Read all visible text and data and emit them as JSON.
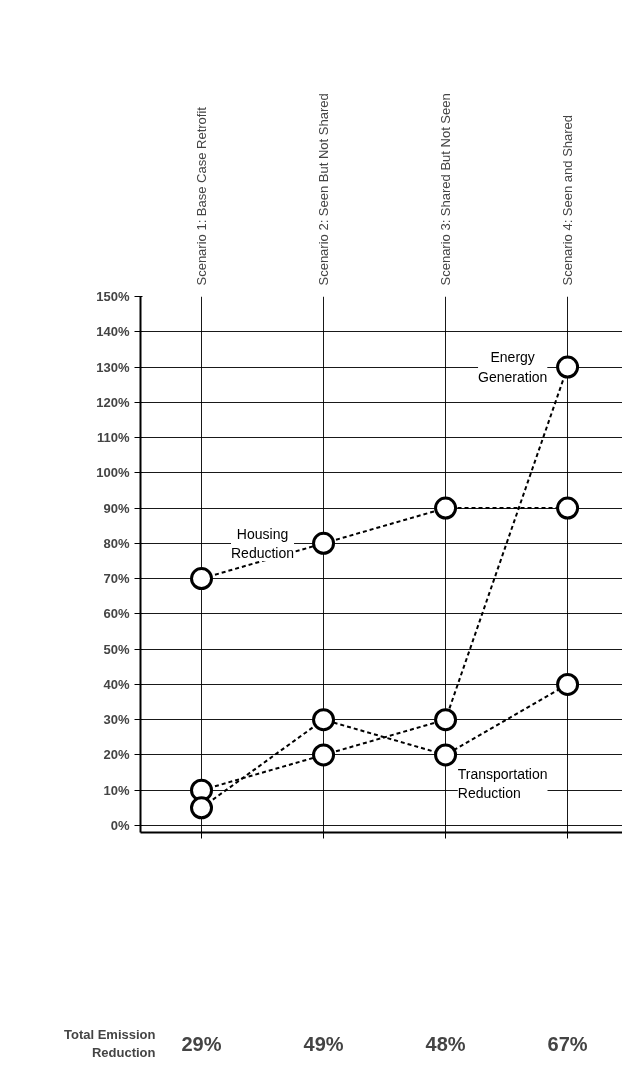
{
  "chart_data": {
    "type": "line",
    "categories": [
      "Scenario 1: Base Case Retrofit",
      "Scenario 2: Seen But Not Shared",
      "Scenario 3: Shared But Not Seen",
      "Scenario 4: Seen and Shared"
    ],
    "series": [
      {
        "name": "Housing Reduction",
        "color": "#000000",
        "values": [
          70,
          80,
          90,
          90
        ]
      },
      {
        "name": "Energy Generation",
        "color": "#000000",
        "values": [
          10,
          20,
          30,
          130
        ]
      },
      {
        "name": "Transportation Reduction",
        "color": "#000000",
        "values": [
          5,
          30,
          20,
          40
        ]
      }
    ],
    "ylim": [
      -2,
      150
    ],
    "yticks": [
      {
        "value": 0,
        "label": "0%"
      },
      {
        "value": 10,
        "label": "10%"
      },
      {
        "value": 20,
        "label": "20%"
      },
      {
        "value": 30,
        "label": "30%"
      },
      {
        "value": 40,
        "label": "40%"
      },
      {
        "value": 50,
        "label": "50%"
      },
      {
        "value": 60,
        "label": "60%"
      },
      {
        "value": 70,
        "label": "70%"
      },
      {
        "value": 80,
        "label": "80%"
      },
      {
        "value": 90,
        "label": "90%"
      },
      {
        "value": 100,
        "label": "100%"
      },
      {
        "value": 110,
        "label": "110%"
      },
      {
        "value": 120,
        "label": "120%"
      },
      {
        "value": 130,
        "label": "130%"
      },
      {
        "value": 140,
        "label": "140%"
      },
      {
        "value": 150,
        "label": "150%"
      }
    ],
    "grid": true,
    "legend": false,
    "marker": "circle",
    "line_style": "dashed",
    "annotations": [
      "Total Emission Reduction",
      "29%",
      "49%",
      "48%",
      "67%"
    ]
  }
}
